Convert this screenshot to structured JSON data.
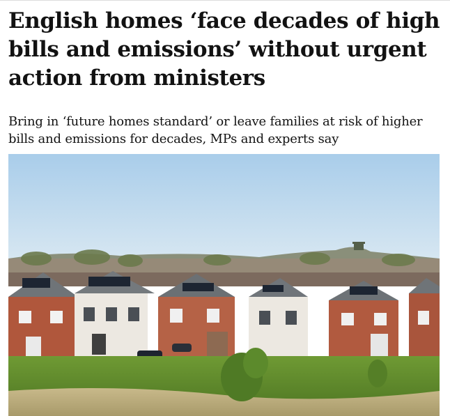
{
  "article": {
    "headline": "English homes ‘face decades of high bills and emissions’ without urgent action from ministers",
    "standfirst": "Bring in ‘future homes standard’ or leave families at risk of higher bills and emissions for decades, MPs and experts say",
    "image": {
      "sky_color": "#bcd8ee",
      "grass_color": "#5f8d2c",
      "brick_color": "#b0573c",
      "render_color": "#ece8e1",
      "roof_color": "#6f7478",
      "panel_color": "#1d2532"
    }
  }
}
